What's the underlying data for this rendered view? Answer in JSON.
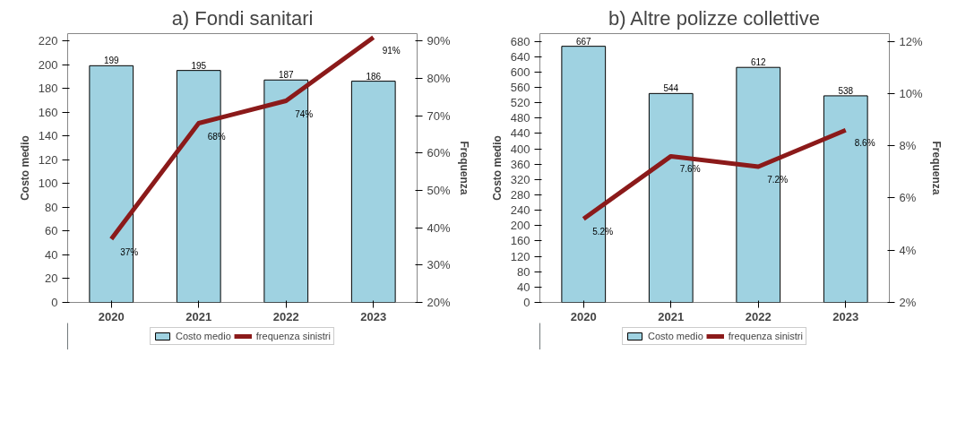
{
  "chart_data": [
    {
      "type": "bar",
      "title": "a) Fondi sanitari",
      "categories": [
        "2020",
        "2021",
        "2022",
        "2023"
      ],
      "ylabel": "Costo medio",
      "y2label": "Frequenza",
      "ylim": [
        0,
        226
      ],
      "yticks": [
        0,
        20,
        40,
        60,
        80,
        100,
        120,
        140,
        160,
        180,
        200,
        220
      ],
      "y2lim": [
        20,
        92
      ],
      "y2ticks": [
        {
          "value": 20,
          "label": "20%"
        },
        {
          "value": 30,
          "label": "30%"
        },
        {
          "value": 40,
          "label": "40%"
        },
        {
          "value": 50,
          "label": "50%"
        },
        {
          "value": 60,
          "label": "60%"
        },
        {
          "value": 70,
          "label": "70%"
        },
        {
          "value": 80,
          "label": "80%"
        },
        {
          "value": 90,
          "label": "90%"
        }
      ],
      "grid": false,
      "legend": "bottom",
      "series": [
        {
          "name": "Costo medio",
          "color": "#9fd2e1",
          "values": [
            199,
            195,
            187,
            186
          ],
          "value_labels": [
            "199",
            "195",
            "187",
            "186"
          ]
        },
        {
          "name": "frequenza sinistri",
          "type": "line",
          "axis": "y2",
          "color": "#8b1a1a",
          "values": [
            37,
            68,
            74,
            91
          ],
          "value_labels": [
            "37%",
            "68%",
            "74%",
            "91%"
          ]
        }
      ]
    },
    {
      "type": "bar",
      "title": "b) Altre polizze collettive",
      "categories": [
        "2020",
        "2021",
        "2022",
        "2023"
      ],
      "ylabel": "Costo medio",
      "y2label": "Frequenza",
      "ylim": [
        0,
        700
      ],
      "yticks": [
        0,
        40,
        80,
        120,
        160,
        200,
        240,
        280,
        320,
        360,
        400,
        440,
        480,
        520,
        560,
        600,
        640,
        680
      ],
      "y2lim": [
        2,
        12.3
      ],
      "y2ticks": [
        {
          "value": 2,
          "label": "2%"
        },
        {
          "value": 4,
          "label": "4%"
        },
        {
          "value": 6,
          "label": "6%"
        },
        {
          "value": 8,
          "label": "8%"
        },
        {
          "value": 10,
          "label": "10%"
        },
        {
          "value": 12,
          "label": "12%"
        }
      ],
      "grid": false,
      "legend": "bottom",
      "series": [
        {
          "name": "Costo medio",
          "color": "#9fd2e1",
          "values": [
            667,
            544,
            612,
            538
          ],
          "value_labels": [
            "667",
            "544",
            "612",
            "538"
          ]
        },
        {
          "name": "frequenza sinistri",
          "type": "line",
          "axis": "y2",
          "color": "#8b1a1a",
          "values": [
            5.2,
            7.6,
            7.2,
            8.6
          ],
          "value_labels": [
            "5.2%",
            "7.6%",
            "7.2%",
            "8.6%"
          ]
        }
      ]
    }
  ]
}
